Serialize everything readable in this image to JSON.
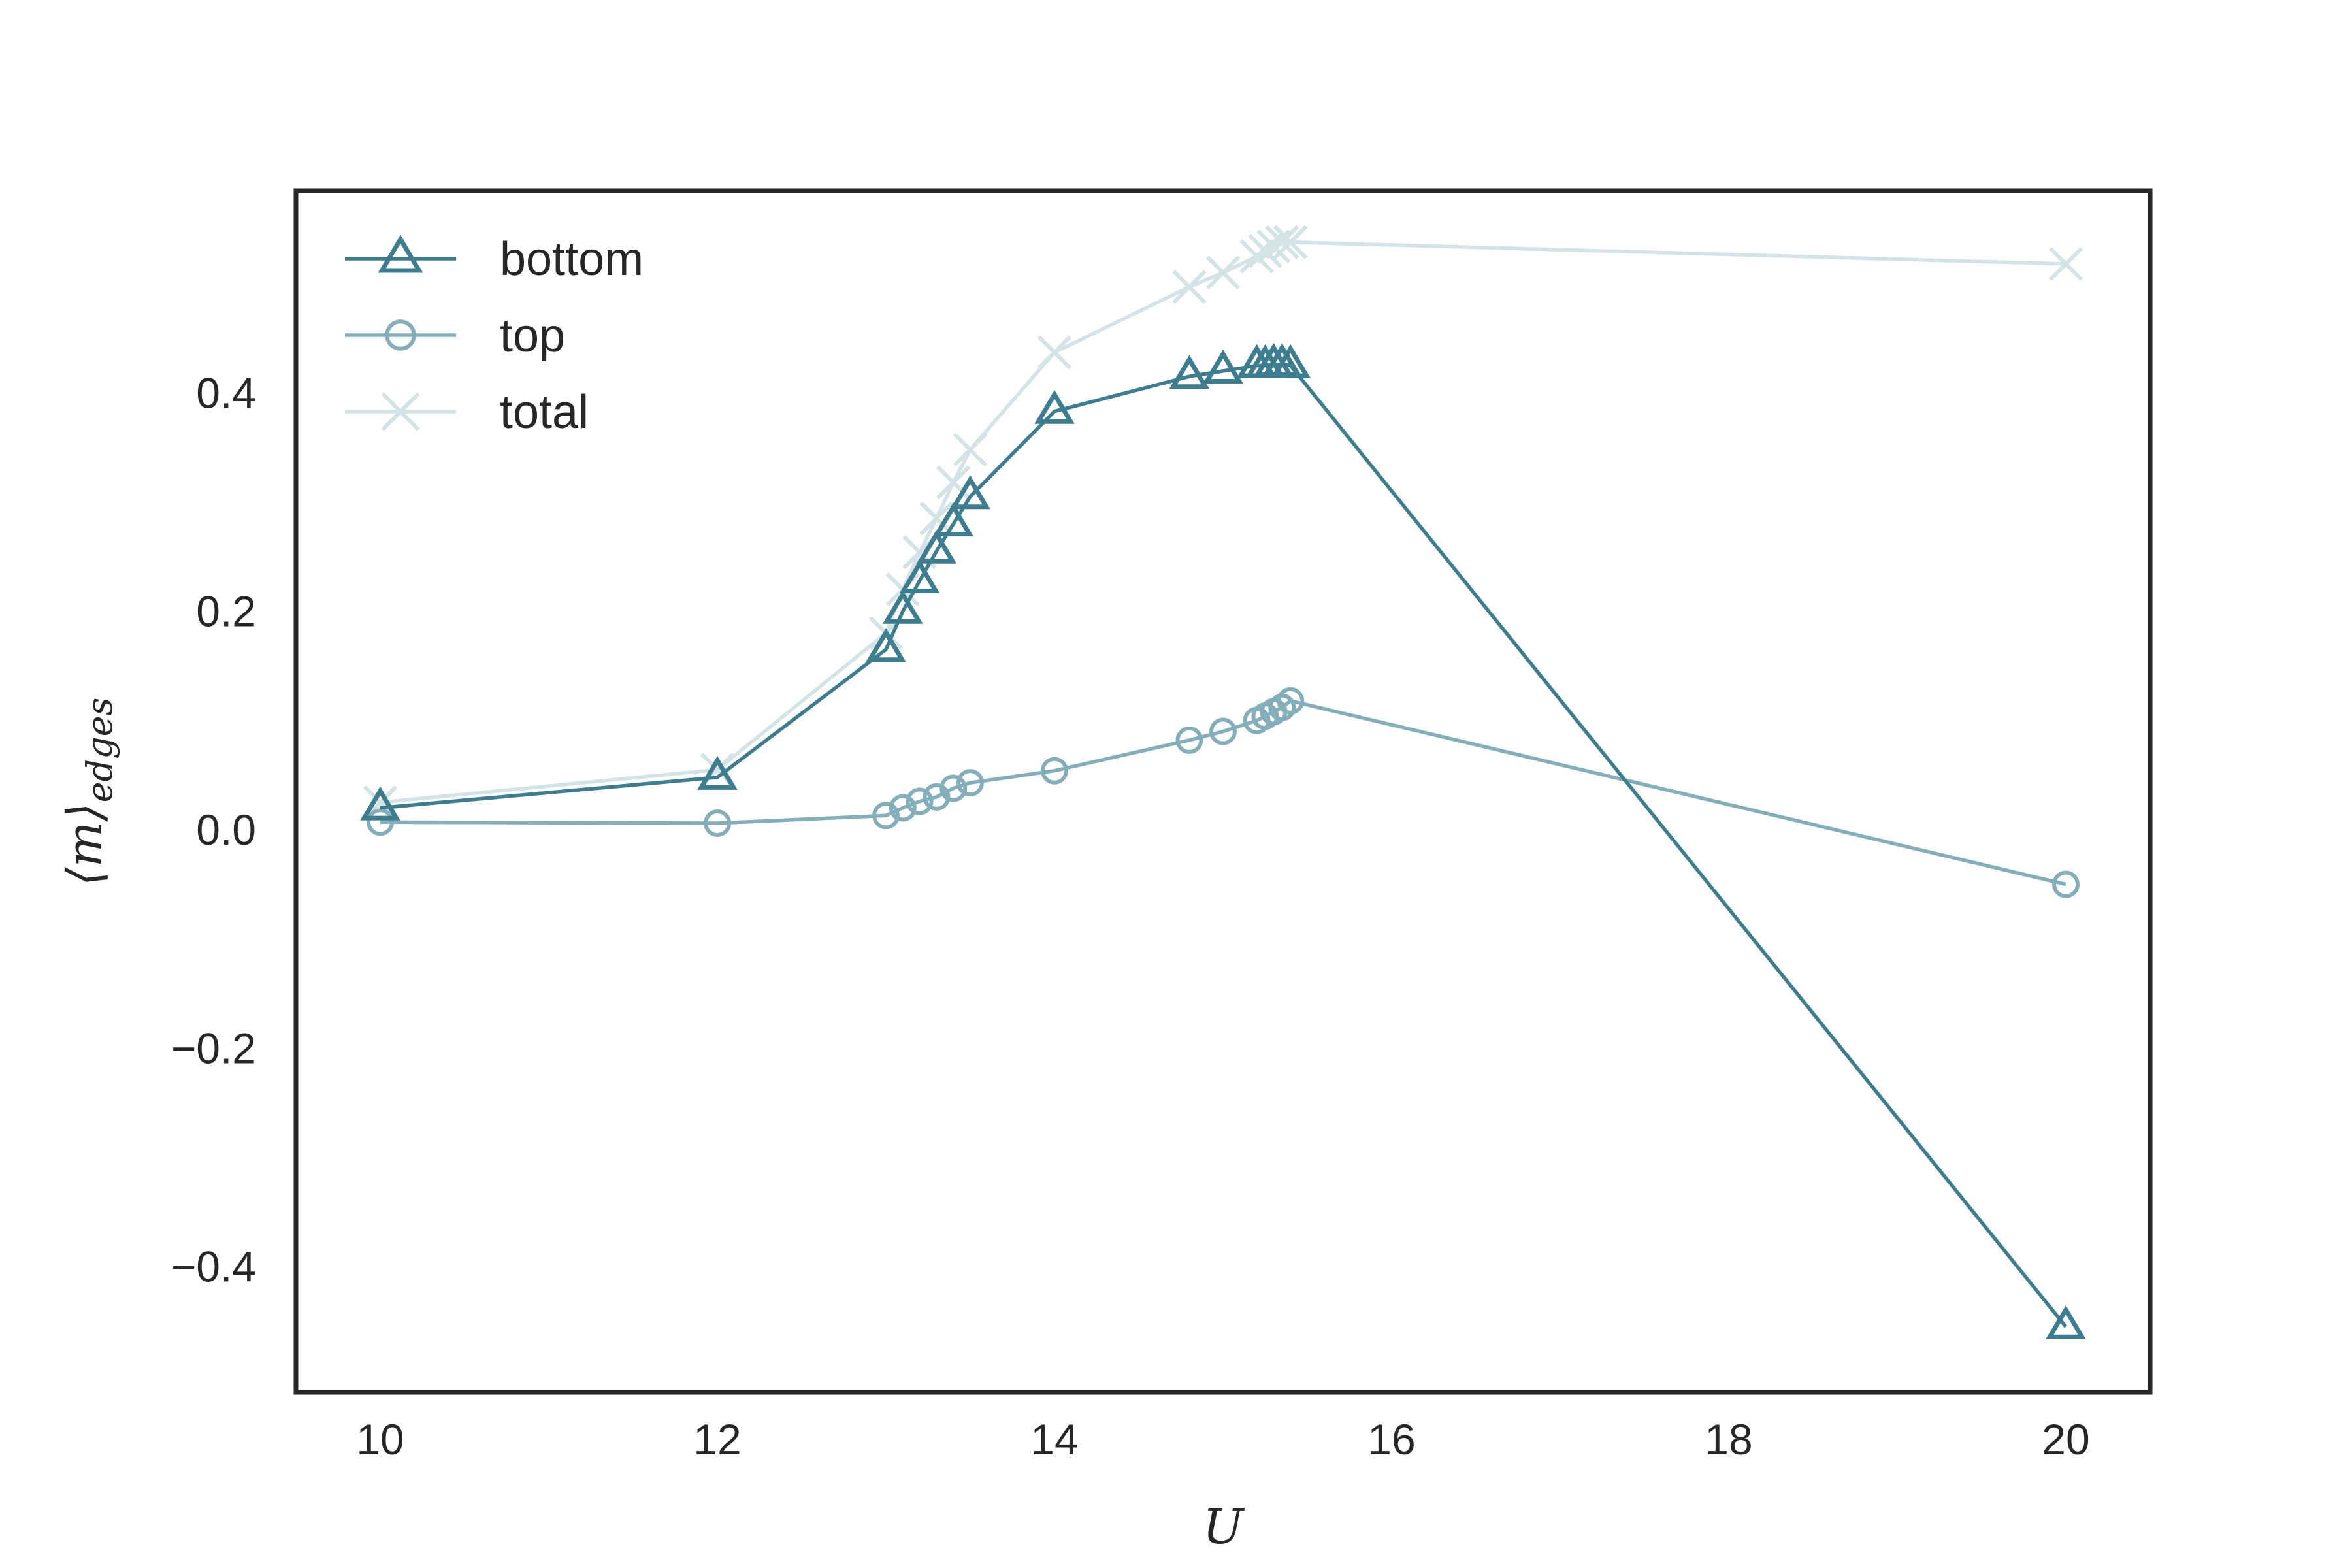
{
  "chart_data": {
    "type": "line",
    "xlabel": "U",
    "ylabel_main": "⟨m⟩",
    "ylabel_sub": "edges",
    "xlim": [
      9.5,
      20.5
    ],
    "ylim": [
      -0.515,
      0.585
    ],
    "xticks": [
      10,
      12,
      14,
      16,
      18,
      20
    ],
    "xtick_labels": [
      "10",
      "12",
      "14",
      "16",
      "18",
      "20"
    ],
    "yticks": [
      0.4,
      0.2,
      0.0,
      -0.2,
      -0.4
    ],
    "ytick_labels": [
      "0.4",
      "0.2",
      "0.0",
      "−0.2",
      "−0.4"
    ],
    "grid": false,
    "legend_position": "top-left",
    "series": [
      {
        "name": "bottom",
        "marker": "triangle",
        "color": "#3e7c8f",
        "x": [
          10,
          12,
          13,
          13.1,
          13.2,
          13.3,
          13.4,
          13.5,
          14,
          14.8,
          15,
          15.2,
          15.25,
          15.3,
          15.35,
          15.4,
          20
        ],
        "y": [
          0.02,
          0.048,
          0.165,
          0.2,
          0.228,
          0.255,
          0.28,
          0.305,
          0.383,
          0.415,
          0.42,
          0.425,
          0.425,
          0.426,
          0.426,
          0.425,
          -0.455
        ]
      },
      {
        "name": "top",
        "marker": "circle",
        "color": "#85aebb",
        "x": [
          10,
          12,
          13,
          13.1,
          13.2,
          13.3,
          13.4,
          13.5,
          14,
          14.8,
          15,
          15.2,
          15.25,
          15.3,
          15.35,
          15.4,
          20
        ],
        "y": [
          0.007,
          0.006,
          0.013,
          0.02,
          0.026,
          0.03,
          0.038,
          0.043,
          0.054,
          0.082,
          0.09,
          0.1,
          0.104,
          0.108,
          0.112,
          0.118,
          -0.05
        ]
      },
      {
        "name": "total",
        "marker": "x",
        "color": "#d3e3e8",
        "x": [
          10,
          12,
          13,
          13.1,
          13.2,
          13.3,
          13.4,
          13.5,
          14,
          14.8,
          15,
          15.2,
          15.25,
          15.3,
          15.35,
          15.4,
          20
        ],
        "y": [
          0.025,
          0.055,
          0.18,
          0.22,
          0.254,
          0.285,
          0.318,
          0.348,
          0.437,
          0.497,
          0.51,
          0.525,
          0.53,
          0.534,
          0.538,
          0.538,
          0.518
        ]
      }
    ]
  }
}
